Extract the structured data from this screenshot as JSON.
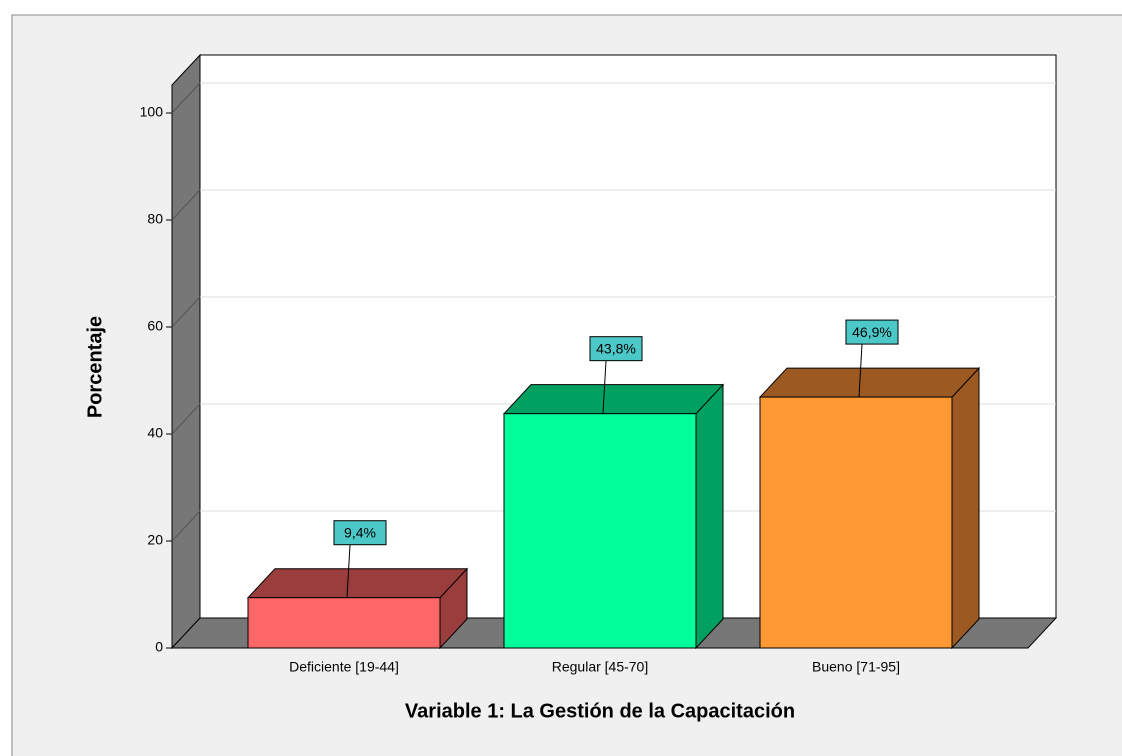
{
  "chart_data": {
    "type": "bar3d",
    "xlabel": "Variable 1: La Gestión de la Capacitación",
    "ylabel": "Porcentaje",
    "categories": [
      "Deficiente [19-44]",
      "Regular [45-70]",
      "Bueno [71-95]"
    ],
    "values": [
      9.4,
      43.8,
      46.9
    ],
    "value_labels": [
      "9,4%",
      "43,8%",
      "46,9%"
    ],
    "colors": [
      "#ff6666",
      "#00ff99",
      "#ff9933"
    ],
    "side_colors": [
      "#993d3d",
      "#00a060",
      "#9c5a22"
    ],
    "label_color": "#4dc8c8",
    "ylim": [
      0,
      100
    ],
    "yticks": [
      0,
      20,
      40,
      60,
      80,
      100
    ],
    "grid": true
  }
}
